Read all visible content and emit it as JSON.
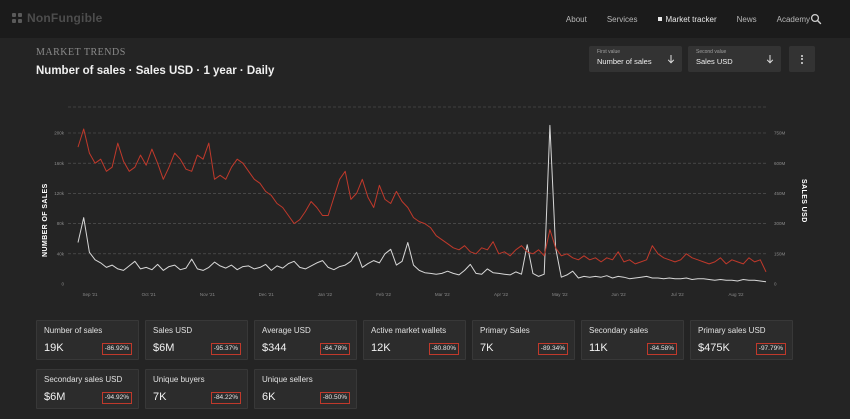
{
  "brand": {
    "name": "NonFungible"
  },
  "nav": {
    "links": [
      "About",
      "Services",
      "Market tracker",
      "News",
      "Academy"
    ],
    "active_index": 2
  },
  "header": {
    "section_label": "MARKET TRENDS",
    "title": "Number of sales · Sales USD · 1 year · Daily"
  },
  "selects": {
    "first": {
      "label": "First value",
      "value": "Number of sales"
    },
    "second": {
      "label": "Second value",
      "value": "Sales USD"
    }
  },
  "colors": {
    "accent": "#c0392b",
    "series_primary": "#d7d7d7",
    "series_secondary": "#c0392b",
    "background": "#242424"
  },
  "chart_data": {
    "type": "line",
    "x_ticks": [
      "Sep '21",
      "Oct '21",
      "Nov '21",
      "Dec '21",
      "Jan '22",
      "Feb '22",
      "Mar '22",
      "Apr '22",
      "May '22",
      "Jun '22",
      "Jul '22",
      "Aug '22"
    ],
    "y_left_label": "NUMBER OF SALES",
    "y_left_ticks": [
      "0",
      "40k",
      "80k",
      "120k",
      "160k",
      "200k"
    ],
    "y_left_range": [
      0,
      200000
    ],
    "y_right_label": "SALES USD",
    "y_right_ticks": [
      "0",
      "150M",
      "300M",
      "450M",
      "600M",
      "750M"
    ],
    "y_right_range": [
      0,
      750000000
    ],
    "series": [
      {
        "name": "Number of sales",
        "axis": "left",
        "values": [
          55000,
          88000,
          42000,
          32000,
          28000,
          22000,
          25000,
          20000,
          18000,
          24000,
          30000,
          20000,
          22000,
          19000,
          26000,
          18000,
          23000,
          25000,
          19000,
          21000,
          33000,
          20000,
          18000,
          22000,
          29000,
          24000,
          21000,
          25000,
          19000,
          23000,
          24000,
          20000,
          22000,
          26000,
          18000,
          24000,
          21000,
          27000,
          30000,
          22000,
          20000,
          24000,
          28000,
          31000,
          22000,
          19000,
          23000,
          25000,
          30000,
          42000,
          22000,
          27000,
          31000,
          28000,
          40000,
          46000,
          25000,
          30000,
          55000,
          25000,
          18000,
          15000,
          14000,
          13000,
          14000,
          17000,
          14000,
          12000,
          18000,
          26000,
          14000,
          13000,
          20000,
          15000,
          14000,
          13000,
          12000,
          16000,
          13000,
          52000,
          14000,
          10000,
          13000,
          210000,
          48000,
          9000,
          12000,
          17000,
          8000,
          10000,
          9000,
          10000,
          9000,
          11000,
          8000,
          10000,
          9000,
          7000,
          8000,
          9000,
          10000,
          8000,
          8000,
          7000,
          8000,
          7000,
          7000,
          8000,
          6000,
          7000,
          7000,
          6000,
          5000,
          6000,
          5000,
          5000,
          4000,
          6000,
          5000,
          5000,
          4000,
          3000
        ]
      },
      {
        "name": "Sales USD",
        "axis": "right",
        "values": [
          680000000,
          770000000,
          650000000,
          600000000,
          620000000,
          560000000,
          580000000,
          700000000,
          610000000,
          560000000,
          580000000,
          640000000,
          590000000,
          670000000,
          600000000,
          520000000,
          580000000,
          650000000,
          620000000,
          570000000,
          560000000,
          640000000,
          620000000,
          700000000,
          520000000,
          540000000,
          520000000,
          580000000,
          620000000,
          600000000,
          560000000,
          520000000,
          500000000,
          460000000,
          440000000,
          400000000,
          380000000,
          340000000,
          300000000,
          320000000,
          360000000,
          410000000,
          380000000,
          340000000,
          340000000,
          430000000,
          520000000,
          560000000,
          420000000,
          450000000,
          520000000,
          430000000,
          380000000,
          490000000,
          420000000,
          400000000,
          460000000,
          410000000,
          380000000,
          330000000,
          310000000,
          300000000,
          280000000,
          240000000,
          220000000,
          200000000,
          180000000,
          170000000,
          190000000,
          160000000,
          150000000,
          180000000,
          170000000,
          210000000,
          150000000,
          160000000,
          140000000,
          170000000,
          190000000,
          160000000,
          150000000,
          170000000,
          140000000,
          270000000,
          180000000,
          140000000,
          150000000,
          130000000,
          120000000,
          140000000,
          120000000,
          130000000,
          110000000,
          130000000,
          120000000,
          160000000,
          110000000,
          120000000,
          100000000,
          110000000,
          120000000,
          190000000,
          150000000,
          130000000,
          120000000,
          110000000,
          120000000,
          150000000,
          130000000,
          120000000,
          110000000,
          100000000,
          110000000,
          130000000,
          100000000,
          120000000,
          110000000,
          100000000,
          130000000,
          110000000,
          120000000,
          60000000
        ]
      }
    ]
  },
  "stats": [
    {
      "label": "Number of sales",
      "value": "19K",
      "change": "-86.92%"
    },
    {
      "label": "Sales USD",
      "value": "$6M",
      "change": "-95.37%"
    },
    {
      "label": "Average USD",
      "value": "$344",
      "change": "-64.78%"
    },
    {
      "label": "Active market wallets",
      "value": "12K",
      "change": "-80.80%"
    },
    {
      "label": "Primary Sales",
      "value": "7K",
      "change": "-89.34%"
    },
    {
      "label": "Secondary sales",
      "value": "11K",
      "change": "-84.58%"
    },
    {
      "label": "Primary sales USD",
      "value": "$475K",
      "change": "-97.79%"
    },
    {
      "label": "Secondary sales USD",
      "value": "$6M",
      "change": "-94.92%"
    },
    {
      "label": "Unique buyers",
      "value": "7K",
      "change": "-84.22%"
    },
    {
      "label": "Unique sellers",
      "value": "6K",
      "change": "-80.50%"
    }
  ]
}
